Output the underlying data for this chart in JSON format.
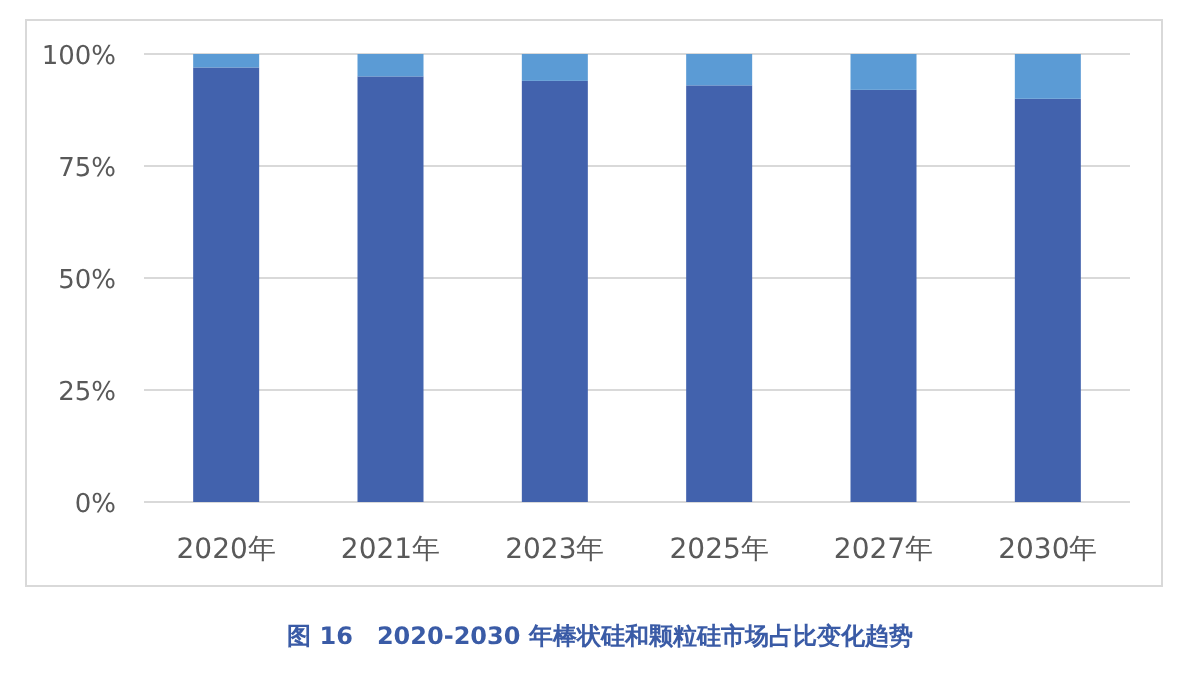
{
  "chart_data": {
    "type": "bar",
    "stacked": true,
    "categories": [
      "2020年",
      "2021年",
      "2023年",
      "2025年",
      "2027年",
      "2030年"
    ],
    "series": [
      {
        "color": "#4262ad",
        "values": [
          97,
          95,
          94,
          93,
          92,
          90
        ]
      },
      {
        "color": "#5b9bd5",
        "values": [
          3,
          5,
          6,
          7,
          8,
          10
        ]
      }
    ],
    "ylim": [
      0,
      100
    ],
    "yticks": [
      {
        "value": 0,
        "label": "0%"
      },
      {
        "value": 25,
        "label": "25%"
      },
      {
        "value": 50,
        "label": "50%"
      },
      {
        "value": 75,
        "label": "75%"
      },
      {
        "value": 100,
        "label": "100%"
      }
    ],
    "grid": "y",
    "annotations": [
      "图 16　2020-2030 年棒状硅和颗粒硅市场占比变化趋势"
    ]
  }
}
